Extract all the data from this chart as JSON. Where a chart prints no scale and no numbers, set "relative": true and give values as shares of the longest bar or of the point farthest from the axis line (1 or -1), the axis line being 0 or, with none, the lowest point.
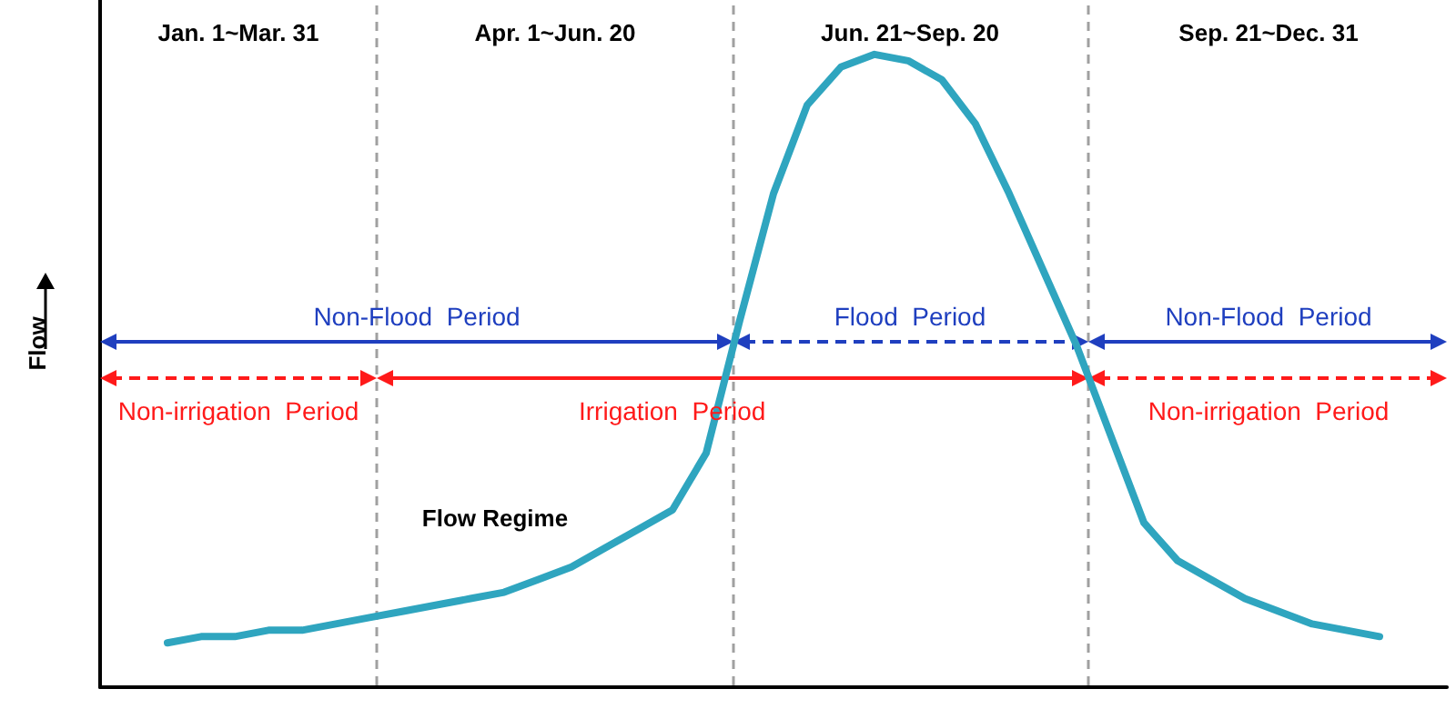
{
  "chart_data": {
    "type": "line",
    "relative": true,
    "marker": "none",
    "ylabel": "Flow",
    "color": "#2fa5bf",
    "categories": [
      null,
      null,
      null,
      null,
      null,
      null,
      null,
      null,
      null,
      null,
      null,
      null,
      null,
      null,
      null,
      null,
      null,
      null,
      null,
      null,
      null,
      null,
      null,
      null,
      null,
      null,
      null,
      null,
      null,
      null,
      null,
      null,
      null,
      null,
      null,
      null,
      null,
      null,
      null,
      null,
      null
    ],
    "values": [
      null,
      null,
      0.07,
      0.08,
      0.08,
      0.09,
      0.09,
      0.1,
      0.11,
      0.12,
      0.13,
      0.14,
      0.15,
      0.17,
      0.19,
      0.22,
      0.25,
      0.28,
      0.37,
      0.58,
      0.78,
      0.92,
      0.98,
      1,
      0.99,
      0.96,
      0.89,
      0.78,
      0.66,
      0.54,
      0.4,
      0.26,
      0.2,
      0.17,
      0.14,
      0.12,
      0.1,
      0.09,
      0.08,
      null,
      null
    ],
    "annotations": [
      "Jan. 1~Mar. 31",
      "Apr. 1~Jun. 20",
      "Jun. 21~Sep. 20",
      "Sep. 21~Dec. 31",
      "Non-Flood  Period",
      "Flood  Period",
      "Non-Flood  Period",
      "Non-irrigation  Period",
      "Irrigation  Period",
      "Non-irrigation  Period",
      "Flow Regime"
    ]
  }
}
